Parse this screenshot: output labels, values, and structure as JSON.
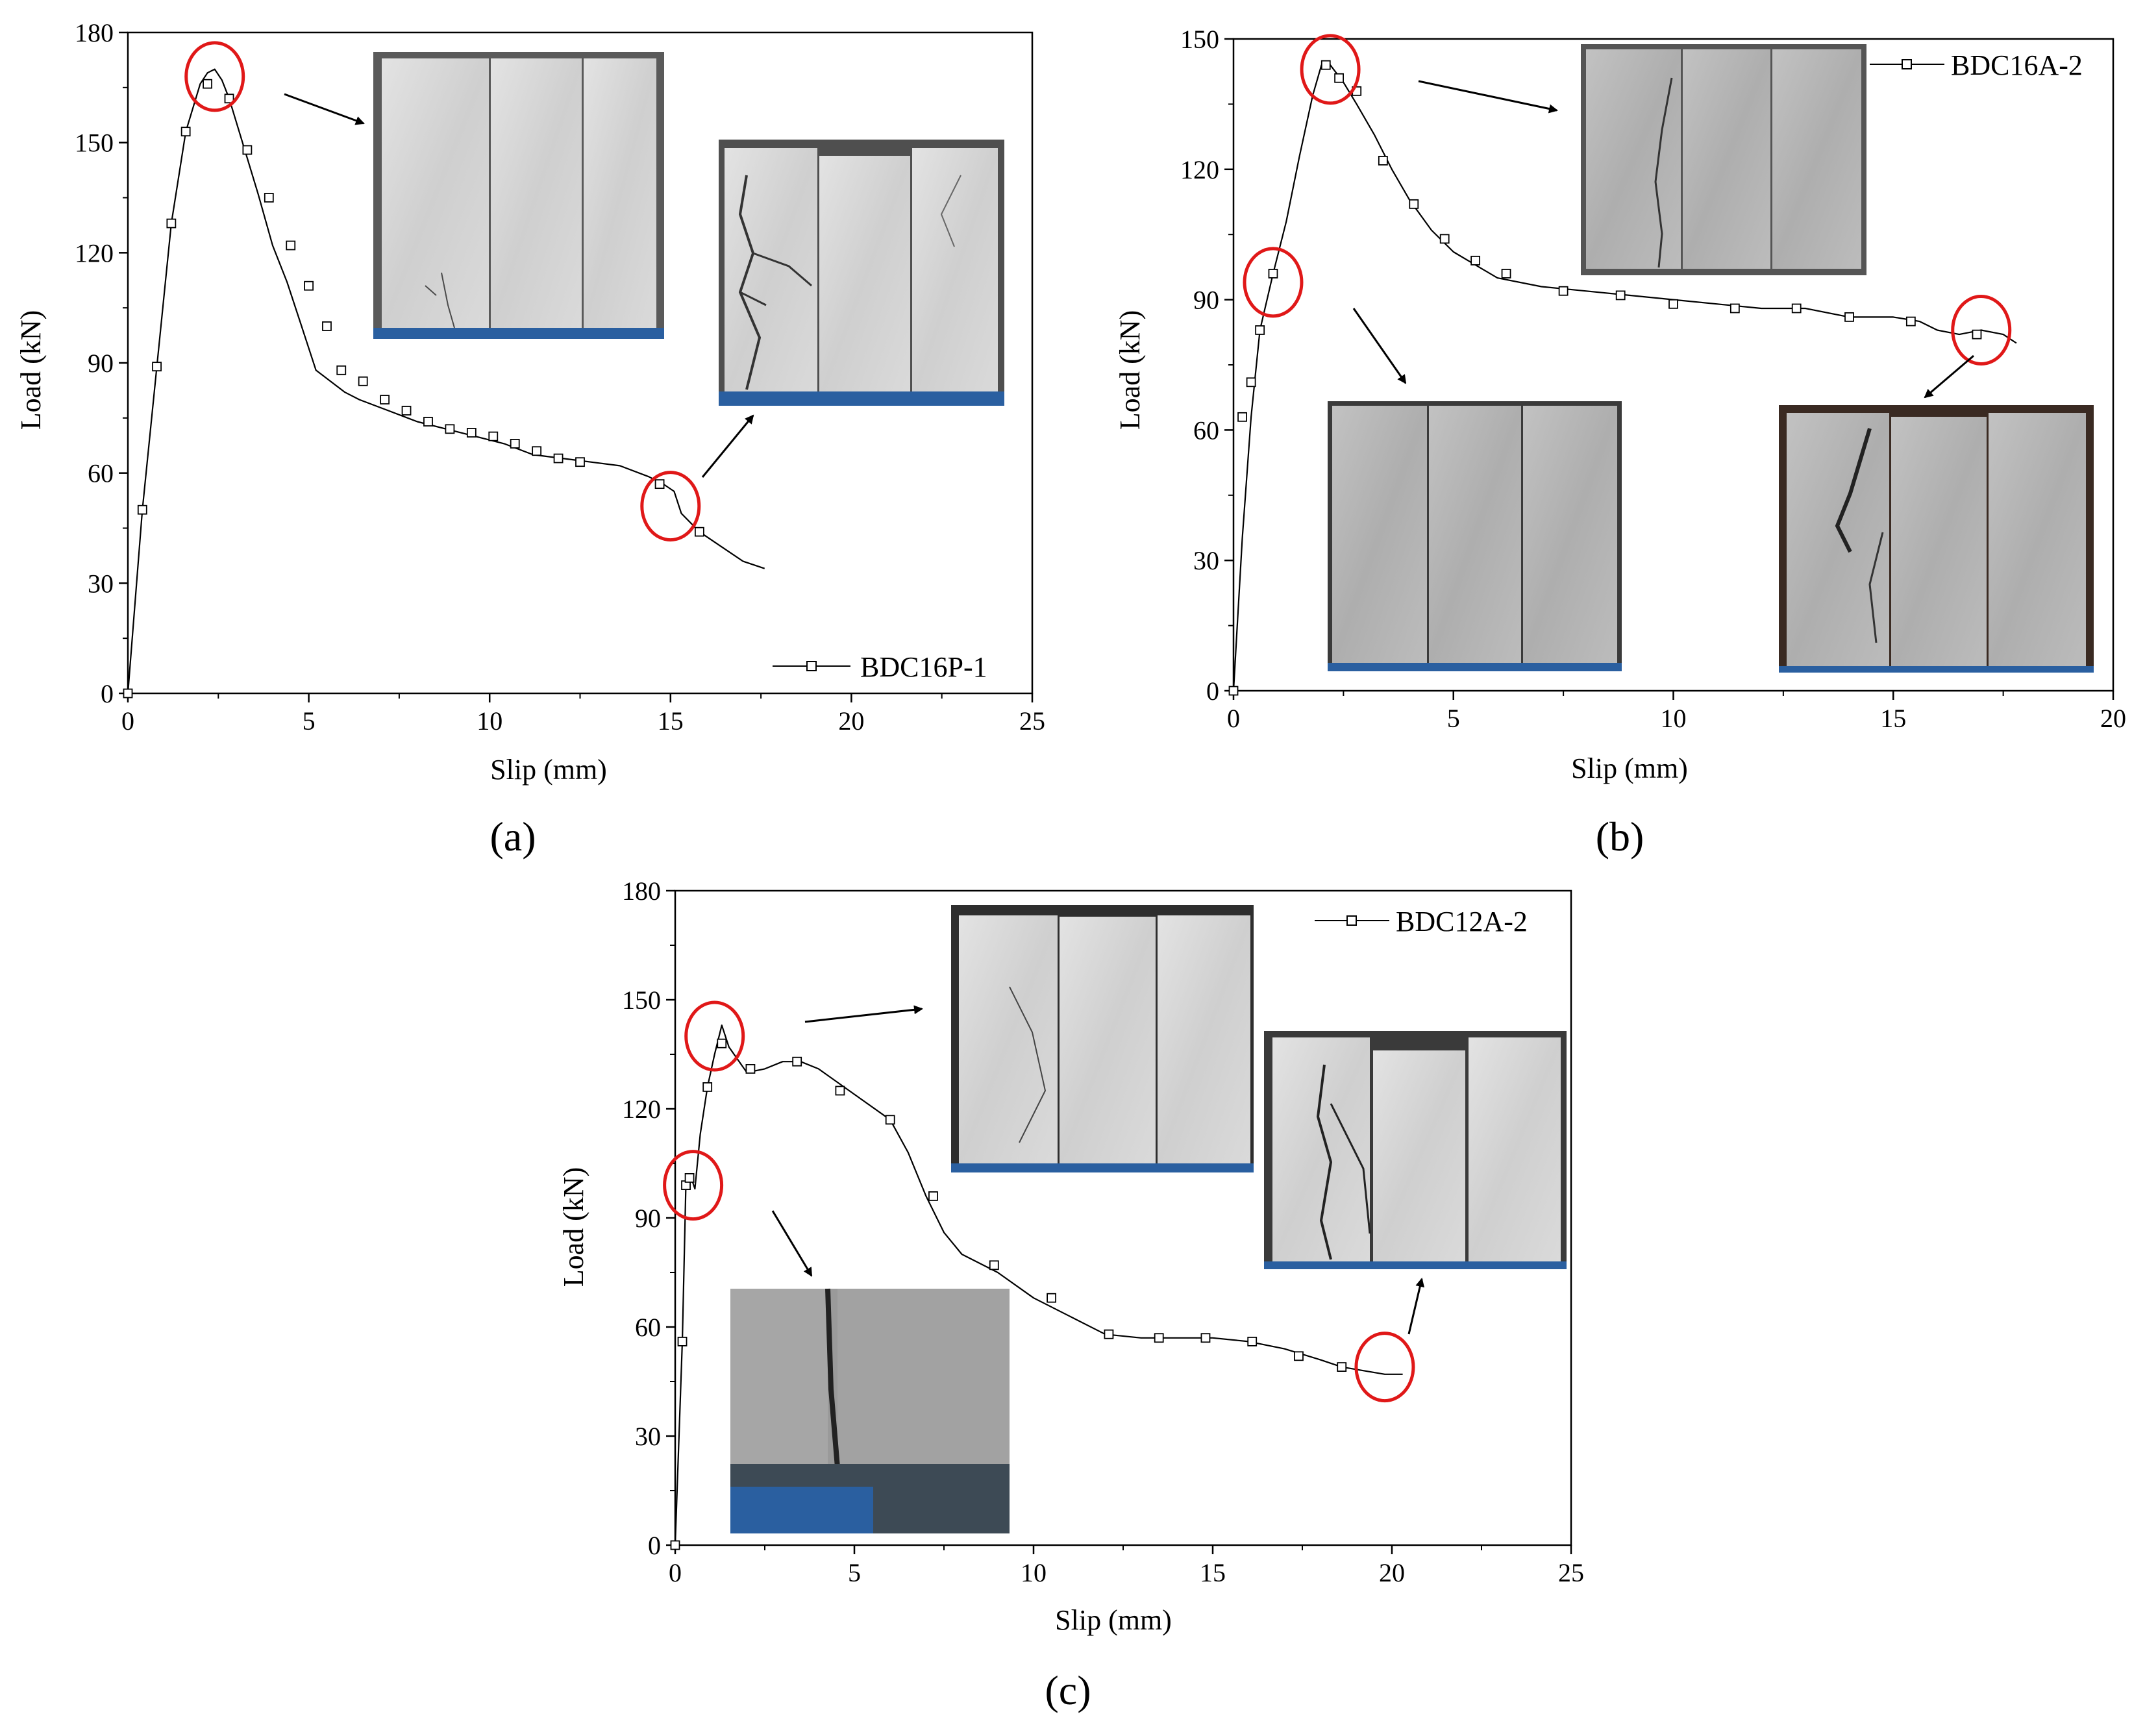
{
  "chart_data": [
    {
      "type": "line",
      "panel_label": "(a)",
      "xlabel": "Slip (mm)",
      "ylabel": "Load (kN)",
      "xlim": [
        0,
        25
      ],
      "ylim": [
        0,
        180
      ],
      "xticks": [
        "0",
        "5",
        "10",
        "15",
        "20",
        "25"
      ],
      "yticks": [
        "0",
        "30",
        "60",
        "90",
        "120",
        "150",
        "180"
      ],
      "legend_position": "bottom-right",
      "series": [
        {
          "name": "BDC16P-1",
          "marker": "open-square",
          "x": [
            0,
            0.4,
            0.8,
            1.2,
            1.6,
            2.0,
            2.2,
            2.4,
            2.6,
            2.8,
            3.2,
            3.6,
            4.0,
            4.4,
            4.8,
            5.2,
            5.6,
            6.0,
            6.4,
            7.2,
            8.0,
            8.8,
            9.6,
            10.4,
            11.2,
            12.0,
            12.8,
            13.6,
            14.4,
            14.8,
            15.1,
            15.3,
            15.8,
            16.4,
            17.0,
            17.6
          ],
          "y": [
            0,
            50,
            89,
            128,
            153,
            166,
            169,
            170,
            167,
            162,
            149,
            136,
            122,
            112,
            100,
            88,
            85,
            82,
            80,
            77,
            74,
            72,
            70,
            68,
            65,
            64,
            63,
            62,
            59,
            57,
            55,
            49,
            44,
            40,
            36,
            34
          ],
          "markers_x": [
            0,
            0.4,
            0.8,
            1.2,
            1.6,
            2.2,
            2.8,
            3.3,
            3.9,
            4.5,
            5.0,
            5.5,
            5.9,
            6.5,
            7.1,
            7.7,
            8.3,
            8.9,
            9.5,
            10.1,
            10.7,
            11.3,
            11.9,
            12.5,
            14.7,
            15.8
          ],
          "markers_y": [
            0,
            50,
            89,
            128,
            153,
            166,
            162,
            148,
            135,
            122,
            111,
            100,
            88,
            85,
            80,
            77,
            74,
            72,
            71,
            70,
            68,
            66,
            64,
            63,
            57,
            44
          ]
        }
      ],
      "annotations": [
        {
          "type": "circle",
          "x": 2.4,
          "y": 168
        },
        {
          "type": "circle",
          "x": 15.0,
          "y": 51
        }
      ]
    },
    {
      "type": "line",
      "panel_label": "(b)",
      "xlabel": "Slip (mm)",
      "ylabel": "Load (kN)",
      "xlim": [
        0,
        20
      ],
      "ylim": [
        0,
        150
      ],
      "xticks": [
        "0",
        "5",
        "10",
        "15",
        "20"
      ],
      "yticks": [
        "0",
        "30",
        "60",
        "90",
        "120",
        "150"
      ],
      "legend_position": "top-right",
      "series": [
        {
          "name": "BDC16A-2",
          "marker": "open-square",
          "x": [
            0,
            0.2,
            0.4,
            0.6,
            0.9,
            1.2,
            1.5,
            1.8,
            2.0,
            2.2,
            2.5,
            2.8,
            3.2,
            3.6,
            4.0,
            4.5,
            5.0,
            5.5,
            6.0,
            7.0,
            8.0,
            9.0,
            10.0,
            11.0,
            12.0,
            13.0,
            14.0,
            15.0,
            15.6,
            16.0,
            16.5,
            17.0,
            17.5,
            17.8
          ],
          "y": [
            0,
            35,
            63,
            83,
            96,
            108,
            123,
            137,
            144,
            144,
            140,
            135,
            128,
            120,
            113,
            106,
            101,
            98,
            95,
            93,
            92,
            91,
            90,
            89,
            88,
            88,
            86,
            86,
            85,
            83,
            82,
            83,
            82,
            80
          ],
          "markers_x": [
            0,
            0.2,
            0.4,
            0.6,
            0.9,
            2.1,
            2.4,
            2.8,
            3.4,
            4.1,
            4.8,
            5.5,
            6.2,
            7.5,
            8.8,
            10.0,
            11.4,
            12.8,
            14.0,
            15.4,
            16.9
          ],
          "markers_y": [
            0,
            63,
            71,
            83,
            96,
            144,
            141,
            138,
            122,
            112,
            104,
            99,
            96,
            92,
            91,
            89,
            88,
            88,
            86,
            85,
            82
          ]
        }
      ],
      "annotations": [
        {
          "type": "circle",
          "x": 2.2,
          "y": 143
        },
        {
          "type": "circle",
          "x": 0.9,
          "y": 94
        },
        {
          "type": "circle",
          "x": 17.0,
          "y": 83
        }
      ]
    },
    {
      "type": "line",
      "panel_label": "(c)",
      "xlabel": "Slip (mm)",
      "ylabel": "Load (kN)",
      "xlim": [
        0,
        25
      ],
      "ylim": [
        0,
        180
      ],
      "xticks": [
        "0",
        "5",
        "10",
        "15",
        "20",
        "25"
      ],
      "yticks": [
        "0",
        "30",
        "60",
        "90",
        "120",
        "150",
        "180"
      ],
      "legend_position": "top-right",
      "series": [
        {
          "name": "BDC12A-2",
          "marker": "open-square",
          "x": [
            0,
            0.2,
            0.3,
            0.45,
            0.55,
            0.7,
            0.9,
            1.1,
            1.3,
            1.5,
            2.0,
            2.5,
            3.0,
            3.5,
            4.0,
            5.0,
            6.0,
            6.5,
            7.0,
            7.5,
            8.0,
            9.0,
            10.0,
            11.0,
            12.0,
            13.0,
            14.0,
            15.0,
            16.0,
            17.0,
            18.0,
            18.6,
            19.2,
            19.8,
            20.3
          ],
          "y": [
            0,
            56,
            100,
            101,
            98,
            113,
            126,
            135,
            143,
            137,
            130,
            131,
            133,
            133,
            131,
            124,
            117,
            108,
            96,
            86,
            80,
            75,
            68,
            63,
            58,
            57,
            57,
            57,
            56,
            54,
            51,
            49,
            48,
            47,
            47
          ],
          "markers_x": [
            0,
            0.2,
            0.3,
            0.4,
            0.9,
            1.3,
            2.1,
            3.4,
            4.6,
            6.0,
            7.2,
            8.9,
            10.5,
            12.1,
            13.5,
            14.8,
            16.1,
            17.4,
            18.6
          ],
          "markers_y": [
            0,
            56,
            99,
            101,
            126,
            138,
            131,
            133,
            125,
            117,
            96,
            77,
            68,
            58,
            57,
            57,
            56,
            52,
            49
          ]
        }
      ],
      "annotations": [
        {
          "type": "circle",
          "x": 1.1,
          "y": 140
        },
        {
          "type": "circle",
          "x": 0.5,
          "y": 99
        },
        {
          "type": "circle",
          "x": 19.8,
          "y": 49
        }
      ]
    }
  ]
}
